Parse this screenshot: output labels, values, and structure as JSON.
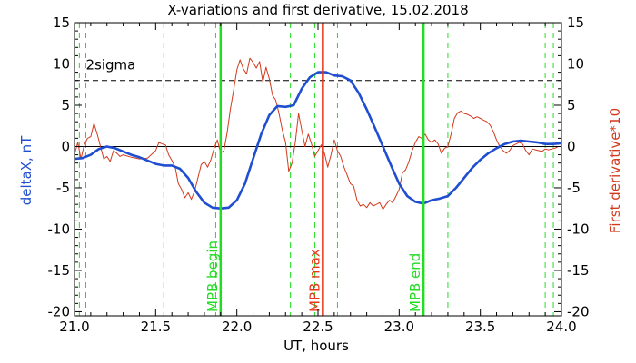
{
  "chart_data": {
    "type": "line",
    "title": "X-variations and first derivative, 15.02.2018",
    "xlabel": "UT, hours",
    "ylabel_left": "deltaX, nT",
    "ylabel_right": "First derivative*10",
    "xlim": [
      21.0,
      24.0
    ],
    "ylim": [
      -20.5,
      15
    ],
    "x_ticks": [
      "21.0",
      "21.5",
      "22.0",
      "22.5",
      "23.0",
      "23.5",
      "24.0"
    ],
    "y_ticks": [
      "15",
      "10",
      "5",
      "0",
      "-5",
      "-10",
      "-15",
      "-20"
    ],
    "colors": {
      "deltaX": "#1f4fd0",
      "derivative": "#d23a1e",
      "threshold": "#000000",
      "zero": "#000000",
      "mpb_begin": "#22dd22",
      "mpb_max": "#e8371b",
      "mpb_end": "#22dd22",
      "dashed_green": "#22dd22"
    },
    "threshold": {
      "label": "2sigma",
      "y": 8.0
    },
    "zero_line": 0,
    "vertical_markers": [
      {
        "label": "MPB begin",
        "x": 21.9,
        "color": "#22dd22"
      },
      {
        "label": "MPB max",
        "x": 22.53,
        "color": "#e8371b"
      },
      {
        "label": "MPB end",
        "x": 23.15,
        "color": "#22dd22"
      }
    ],
    "dashed_lines_x": [
      21.03,
      21.07,
      21.55,
      21.87,
      22.33,
      22.48,
      22.62,
      23.3,
      23.9,
      23.95
    ],
    "series": [
      {
        "name": "deltaX",
        "axis": "left",
        "x": [
          21.0,
          21.05,
          21.1,
          21.15,
          21.2,
          21.25,
          21.3,
          21.35,
          21.4,
          21.45,
          21.5,
          21.55,
          21.6,
          21.65,
          21.7,
          21.75,
          21.8,
          21.85,
          21.9,
          21.95,
          22.0,
          22.05,
          22.1,
          22.15,
          22.2,
          22.25,
          22.3,
          22.35,
          22.4,
          22.45,
          22.5,
          22.55,
          22.6,
          22.65,
          22.7,
          22.75,
          22.8,
          22.85,
          22.9,
          22.95,
          23.0,
          23.05,
          23.1,
          23.15,
          23.2,
          23.25,
          23.3,
          23.35,
          23.4,
          23.45,
          23.5,
          23.55,
          23.6,
          23.65,
          23.7,
          23.75,
          23.8,
          23.85,
          23.9,
          23.95,
          24.0
        ],
        "values": [
          -1.5,
          -1.4,
          -1.0,
          -0.3,
          0.0,
          -0.2,
          -0.6,
          -1.0,
          -1.3,
          -1.7,
          -2.1,
          -2.3,
          -2.3,
          -2.7,
          -3.8,
          -5.5,
          -6.8,
          -7.4,
          -7.5,
          -7.4,
          -6.5,
          -4.5,
          -1.5,
          1.5,
          3.8,
          4.9,
          4.8,
          5.0,
          7.0,
          8.4,
          9.0,
          9.0,
          8.6,
          8.5,
          8.0,
          6.5,
          4.5,
          2.3,
          0.0,
          -2.3,
          -4.5,
          -6.0,
          -6.7,
          -6.9,
          -6.5,
          -6.3,
          -6.0,
          -5.0,
          -3.8,
          -2.6,
          -1.6,
          -0.8,
          -0.2,
          0.3,
          0.6,
          0.7,
          0.6,
          0.5,
          0.3,
          0.3,
          0.4
        ]
      },
      {
        "name": "First derivative*10",
        "axis": "right",
        "x": [
          21.0,
          21.02,
          21.04,
          21.06,
          21.08,
          21.1,
          21.12,
          21.14,
          21.16,
          21.18,
          21.2,
          21.22,
          21.24,
          21.26,
          21.28,
          21.3,
          21.35,
          21.4,
          21.45,
          21.5,
          21.52,
          21.54,
          21.56,
          21.58,
          21.6,
          21.62,
          21.64,
          21.66,
          21.68,
          21.7,
          21.72,
          21.74,
          21.76,
          21.78,
          21.8,
          21.82,
          21.84,
          21.86,
          21.88,
          21.9,
          21.92,
          21.94,
          21.96,
          21.98,
          22.0,
          22.02,
          22.04,
          22.06,
          22.08,
          22.1,
          22.12,
          22.14,
          22.16,
          22.18,
          22.2,
          22.22,
          22.24,
          22.26,
          22.28,
          22.3,
          22.32,
          22.34,
          22.36,
          22.38,
          22.4,
          22.42,
          22.44,
          22.46,
          22.48,
          22.5,
          22.52,
          22.54,
          22.56,
          22.58,
          22.6,
          22.62,
          22.64,
          22.66,
          22.68,
          22.7,
          22.72,
          22.74,
          22.76,
          22.78,
          22.8,
          22.82,
          22.84,
          22.86,
          22.88,
          22.9,
          22.92,
          22.94,
          22.96,
          22.98,
          23.0,
          23.02,
          23.04,
          23.06,
          23.08,
          23.1,
          23.12,
          23.14,
          23.16,
          23.18,
          23.2,
          23.22,
          23.24,
          23.26,
          23.28,
          23.3,
          23.32,
          23.34,
          23.36,
          23.38,
          23.4,
          23.42,
          23.44,
          23.46,
          23.48,
          23.5,
          23.52,
          23.54,
          23.56,
          23.58,
          23.6,
          23.62,
          23.64,
          23.66,
          23.68,
          23.7,
          23.72,
          23.74,
          23.76,
          23.78,
          23.8,
          23.82,
          23.84,
          23.86,
          23.88,
          23.9,
          23.92,
          23.94,
          23.96,
          23.98,
          24.0
        ],
        "values": [
          -1.0,
          0.5,
          -1.5,
          0.2,
          1.0,
          1.2,
          2.8,
          1.5,
          0.0,
          -1.5,
          -1.2,
          -1.8,
          -0.5,
          -0.8,
          -1.2,
          -1.0,
          -1.3,
          -1.5,
          -1.4,
          -0.5,
          0.5,
          0.3,
          0.2,
          -1.0,
          -1.7,
          -2.5,
          -4.5,
          -5.2,
          -6.2,
          -5.6,
          -6.4,
          -5.4,
          -3.8,
          -2.2,
          -1.8,
          -2.5,
          -1.6,
          -0.2,
          0.8,
          -0.8,
          -0.5,
          1.6,
          4.5,
          6.8,
          9.3,
          10.5,
          9.4,
          8.8,
          10.7,
          10.2,
          9.5,
          10.3,
          7.8,
          9.6,
          8.2,
          6.2,
          5.6,
          4.0,
          2.0,
          0.5,
          -3.0,
          -2.0,
          0.5,
          4.0,
          2.0,
          0.0,
          1.5,
          0.3,
          -1.2,
          -0.5,
          0.2,
          -0.8,
          -2.5,
          -1.0,
          0.8,
          -0.5,
          -1.2,
          -2.5,
          -3.5,
          -4.5,
          -4.8,
          -6.5,
          -7.2,
          -7.0,
          -7.4,
          -6.8,
          -7.2,
          -7.0,
          -6.8,
          -7.6,
          -7.0,
          -6.5,
          -6.8,
          -6.0,
          -5.2,
          -3.2,
          -2.8,
          -1.8,
          -0.5,
          0.5,
          1.2,
          1.0,
          1.5,
          0.8,
          0.5,
          0.8,
          0.3,
          -0.8,
          -0.2,
          0.0,
          1.5,
          3.4,
          4.1,
          4.3,
          4.0,
          3.9,
          3.7,
          3.4,
          3.6,
          3.4,
          3.2,
          3.0,
          2.6,
          1.8,
          0.8,
          0.0,
          -0.5,
          -0.8,
          -0.5,
          0.1,
          0.3,
          0.5,
          0.3,
          -0.5,
          -1.0,
          -0.3,
          -0.4,
          -0.5,
          -0.6,
          -0.3,
          -0.4,
          -0.3,
          -0.2,
          0.0,
          0.0
        ]
      }
    ]
  }
}
